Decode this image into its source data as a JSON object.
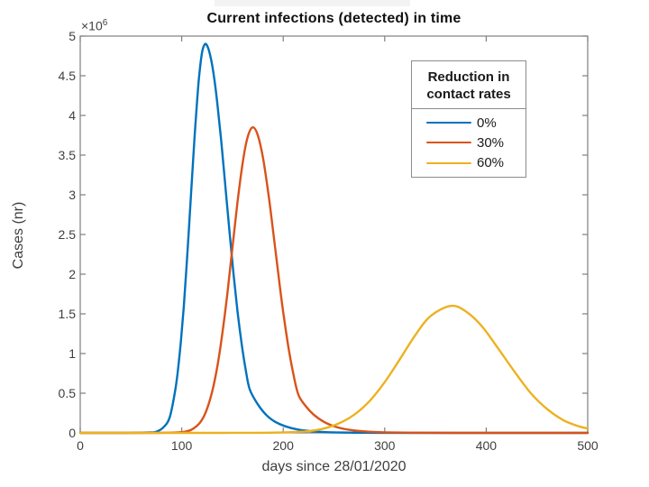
{
  "page": {
    "background": "#ffffff",
    "top_strip_color": "#f3f3f3"
  },
  "chart_data": {
    "type": "line",
    "title": "Current infections (detected) in time",
    "xlabel": "days since 28/01/2020",
    "ylabel": "Cases (nr)",
    "y_axis_multiplier": {
      "base": "×10",
      "exponent": "6"
    },
    "xlim": [
      0,
      500
    ],
    "ylim_millions": [
      0,
      5
    ],
    "xticks": [
      0,
      100,
      200,
      300,
      400,
      500
    ],
    "yticks_millions": [
      0,
      0.5,
      1,
      1.5,
      2,
      2.5,
      3,
      3.5,
      4,
      4.5,
      5
    ],
    "ytick_labels": [
      "0",
      "0.5",
      "1",
      "1.5",
      "2",
      "2.5",
      "3",
      "3.5",
      "4",
      "4.5",
      "5"
    ],
    "grid": false,
    "axis_color": "#7f7f7f",
    "label_color": "#3f3f3f",
    "title_color": "#111111",
    "legend": {
      "title_lines": [
        "Reduction in",
        "contact rates"
      ],
      "position": "top-right"
    },
    "series": [
      {
        "name": "0%",
        "color": "#0072BD",
        "peak": {
          "day": 123,
          "cases_millions": 4.9
        },
        "points_day_casesM": [
          [
            0,
            0
          ],
          [
            30,
            0
          ],
          [
            50,
            0.001
          ],
          [
            60,
            0.003
          ],
          [
            68,
            0.006
          ],
          [
            75,
            0.015
          ],
          [
            82,
            0.07
          ],
          [
            88,
            0.19
          ],
          [
            93,
            0.49
          ],
          [
            96,
            0.76
          ],
          [
            99,
            1.13
          ],
          [
            102,
            1.59
          ],
          [
            105,
            2.14
          ],
          [
            108,
            2.76
          ],
          [
            111,
            3.39
          ],
          [
            114,
            3.98
          ],
          [
            117,
            4.47
          ],
          [
            120,
            4.79
          ],
          [
            123,
            4.9
          ],
          [
            126,
            4.85
          ],
          [
            129,
            4.7
          ],
          [
            132,
            4.47
          ],
          [
            135,
            4.16
          ],
          [
            139,
            3.67
          ],
          [
            143,
            3.11
          ],
          [
            147,
            2.55
          ],
          [
            151,
            2.01
          ],
          [
            155,
            1.53
          ],
          [
            159,
            1.13
          ],
          [
            163,
            0.8
          ],
          [
            167,
            0.55
          ],
          [
            175,
            0.36
          ],
          [
            183,
            0.23
          ],
          [
            192,
            0.14
          ],
          [
            202,
            0.083
          ],
          [
            214,
            0.043
          ],
          [
            228,
            0.02
          ],
          [
            245,
            0.008
          ],
          [
            265,
            0.003
          ],
          [
            290,
            0.001
          ],
          [
            330,
            0
          ],
          [
            400,
            0
          ],
          [
            500,
            0
          ]
        ]
      },
      {
        "name": "30%",
        "color": "#D95319",
        "peak": {
          "day": 170,
          "cases_millions": 3.85
        },
        "points_day_casesM": [
          [
            0,
            0
          ],
          [
            60,
            0
          ],
          [
            85,
            0.002
          ],
          [
            95,
            0.006
          ],
          [
            103,
            0.015
          ],
          [
            110,
            0.043
          ],
          [
            118,
            0.13
          ],
          [
            124,
            0.27
          ],
          [
            130,
            0.52
          ],
          [
            135,
            0.83
          ],
          [
            140,
            1.25
          ],
          [
            145,
            1.76
          ],
          [
            150,
            2.34
          ],
          [
            155,
            2.91
          ],
          [
            160,
            3.4
          ],
          [
            165,
            3.73
          ],
          [
            170,
            3.85
          ],
          [
            175,
            3.75
          ],
          [
            180,
            3.47
          ],
          [
            185,
            3.05
          ],
          [
            190,
            2.55
          ],
          [
            195,
            2.02
          ],
          [
            200,
            1.52
          ],
          [
            205,
            1.09
          ],
          [
            210,
            0.74
          ],
          [
            215,
            0.48
          ],
          [
            222,
            0.34
          ],
          [
            230,
            0.23
          ],
          [
            240,
            0.14
          ],
          [
            252,
            0.075
          ],
          [
            265,
            0.039
          ],
          [
            280,
            0.019
          ],
          [
            300,
            0.007
          ],
          [
            330,
            0.002
          ],
          [
            370,
            0
          ],
          [
            440,
            0
          ],
          [
            500,
            0
          ]
        ]
      },
      {
        "name": "60%",
        "color": "#EDB120",
        "peak": {
          "day": 365,
          "cases_millions": 1.6
        },
        "points_day_casesM": [
          [
            0,
            0
          ],
          [
            80,
            0
          ],
          [
            140,
            0
          ],
          [
            170,
            0.001
          ],
          [
            190,
            0.003
          ],
          [
            210,
            0.01
          ],
          [
            225,
            0.022
          ],
          [
            240,
            0.054
          ],
          [
            255,
            0.12
          ],
          [
            270,
            0.23
          ],
          [
            285,
            0.4
          ],
          [
            300,
            0.64
          ],
          [
            315,
            0.93
          ],
          [
            330,
            1.23
          ],
          [
            345,
            1.47
          ],
          [
            365,
            1.6
          ],
          [
            380,
            1.53
          ],
          [
            396,
            1.34
          ],
          [
            412,
            1.06
          ],
          [
            428,
            0.77
          ],
          [
            444,
            0.5
          ],
          [
            460,
            0.3
          ],
          [
            476,
            0.16
          ],
          [
            490,
            0.089
          ],
          [
            500,
            0.055
          ]
        ]
      }
    ]
  }
}
